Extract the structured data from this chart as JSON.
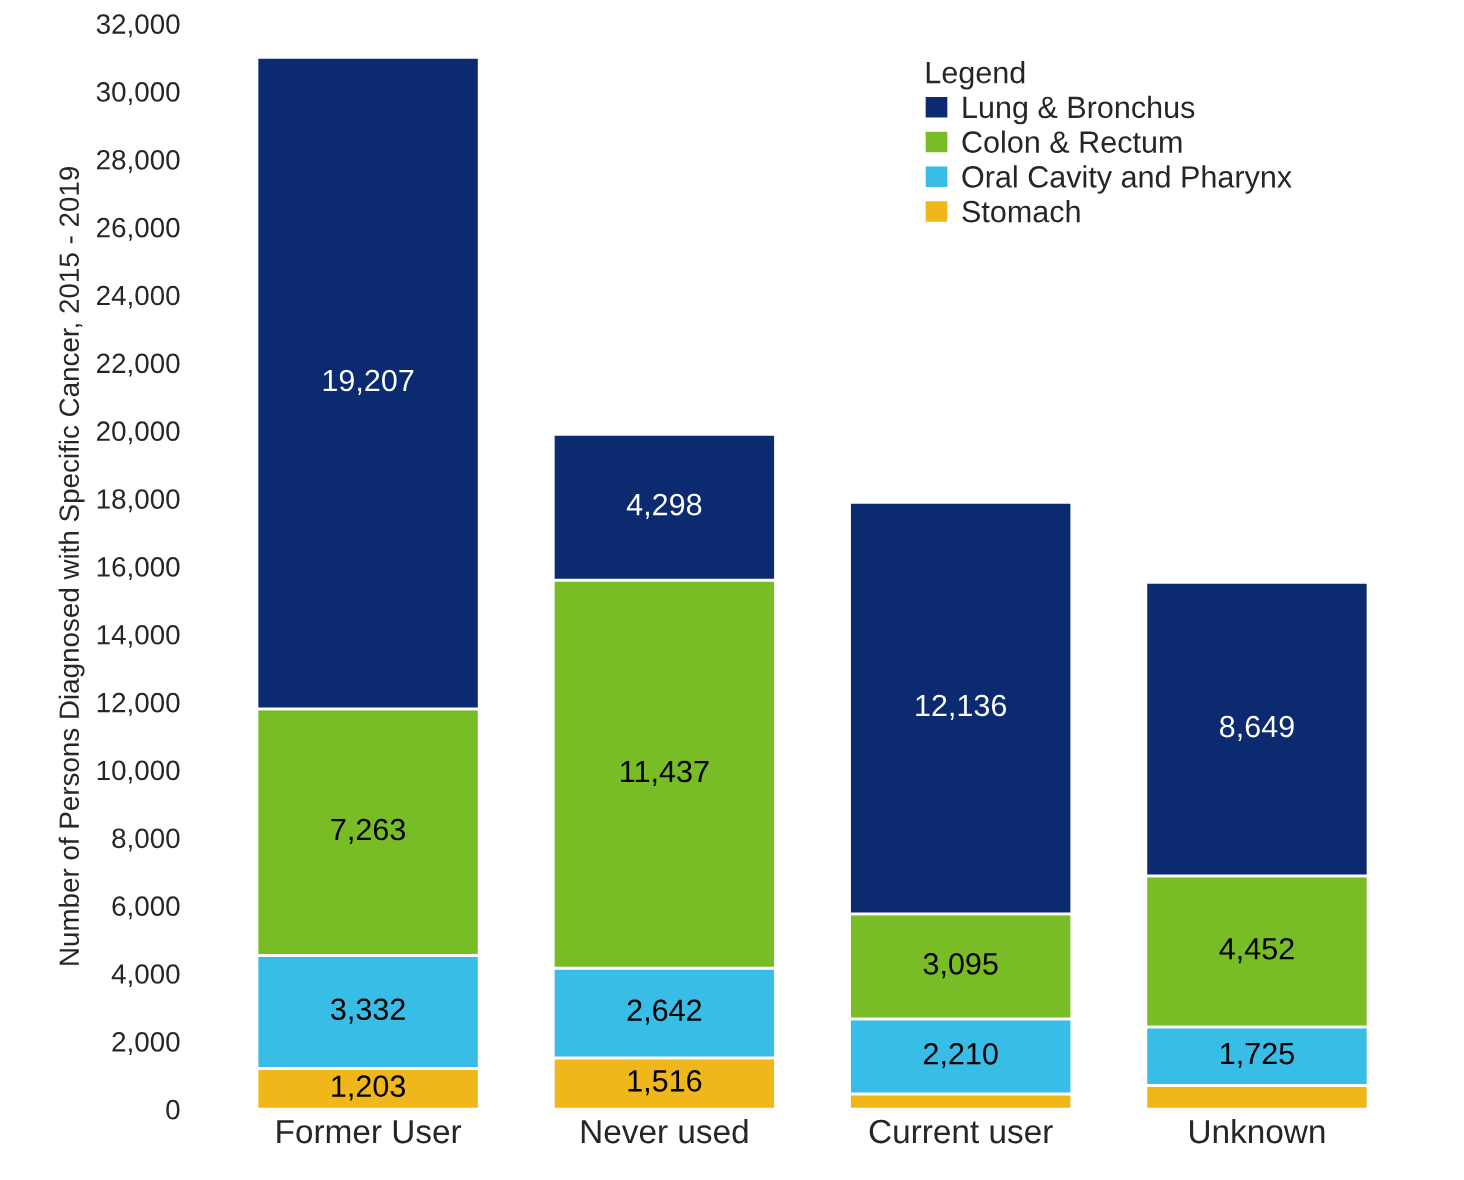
{
  "chart_data": {
    "type": "bar",
    "stacked": true,
    "ylabel": "Number of Persons Diagnosed with Specific Cancer, 2015 - 2019",
    "legend_title": "Legend",
    "legend": "top right",
    "grid": false,
    "categories": [
      "Former User",
      "Never used",
      "Current user",
      "Unknown"
    ],
    "ylim": [
      0,
      32000
    ],
    "yticks": [
      {
        "value": 0,
        "label": "0"
      },
      {
        "value": 2000,
        "label": "2,000"
      },
      {
        "value": 4000,
        "label": "4,000"
      },
      {
        "value": 6000,
        "label": "6,000"
      },
      {
        "value": 8000,
        "label": "8,000"
      },
      {
        "value": 10000,
        "label": "10,000"
      },
      {
        "value": 12000,
        "label": "12,000"
      },
      {
        "value": 14000,
        "label": "14,000"
      },
      {
        "value": 16000,
        "label": "16,000"
      },
      {
        "value": 18000,
        "label": "18,000"
      },
      {
        "value": 20000,
        "label": "20,000"
      },
      {
        "value": 22000,
        "label": "22,000"
      },
      {
        "value": 24000,
        "label": "24,000"
      },
      {
        "value": 26000,
        "label": "26,000"
      },
      {
        "value": 28000,
        "label": "28,000"
      },
      {
        "value": 30000,
        "label": "30,000"
      },
      {
        "value": 32000,
        "label": "32,000"
      }
    ],
    "series": [
      {
        "name": "Stomach",
        "color": "#f0b71a",
        "values": [
          1203,
          1516,
          450,
          700
        ],
        "value_labels": [
          "1,203",
          "1,516",
          null,
          null
        ]
      },
      {
        "name": "Oral Cavity and Pharynx",
        "color": "#38bde6",
        "values": [
          3332,
          2642,
          2210,
          1725
        ],
        "value_labels": [
          "3,332",
          "2,642",
          "2,210",
          "1,725"
        ]
      },
      {
        "name": "Colon & Rectum",
        "color": "#78bc26",
        "values": [
          7263,
          11437,
          3095,
          4452
        ],
        "value_labels": [
          "7,263",
          "11,437",
          "3,095",
          "4,452"
        ]
      },
      {
        "name": "Lung & Bronchus",
        "color": "#0c2a70",
        "values": [
          19207,
          4298,
          12136,
          8649
        ],
        "value_labels": [
          "19,207",
          "4,298",
          "12,136",
          "8,649"
        ]
      }
    ]
  }
}
